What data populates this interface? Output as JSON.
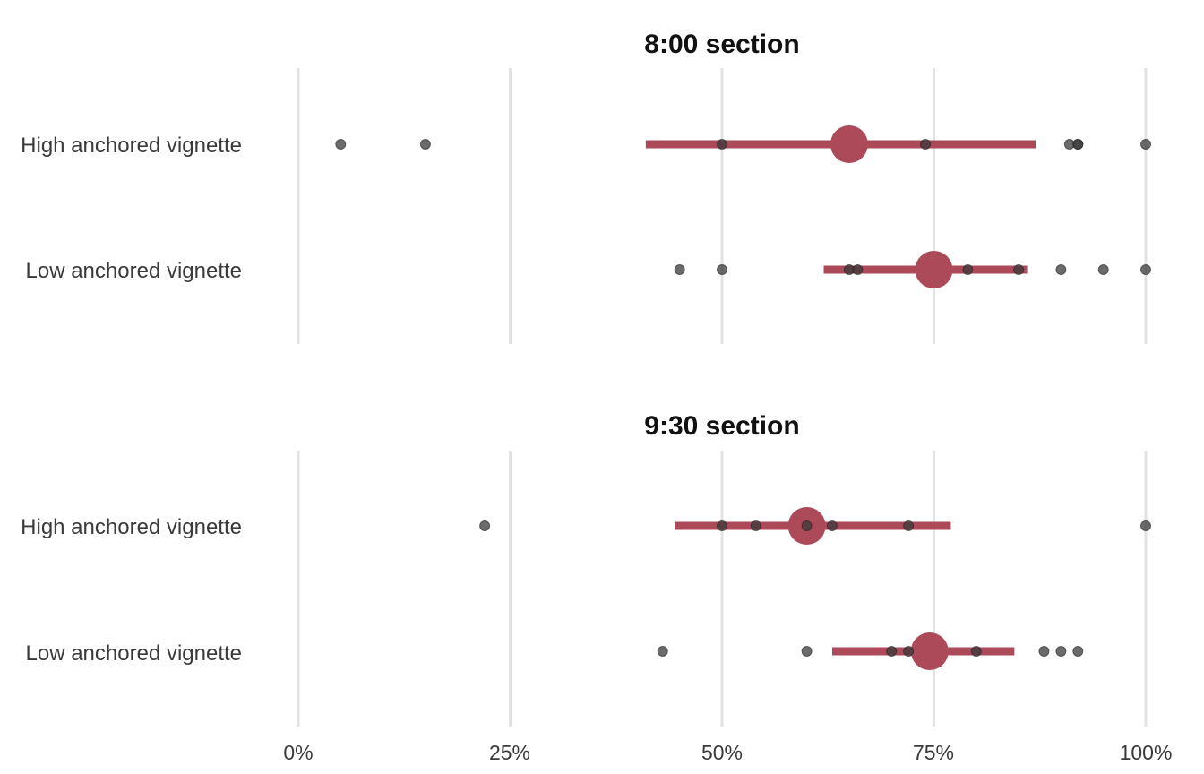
{
  "chart_data": {
    "type": "scatter",
    "xlim": [
      0,
      100
    ],
    "x_ticks": [
      0,
      25,
      50,
      75,
      100
    ],
    "x_tick_labels": [
      "0%",
      "25%",
      "50%",
      "75%",
      "100%"
    ],
    "grid": "vertical",
    "colors": {
      "interval": "#ad4a5a",
      "mean": "#ad4a5a",
      "points": "#3a3a3a"
    },
    "panels": [
      {
        "title": "8:00 section",
        "rows": [
          {
            "label": "High anchored vignette",
            "points": [
              5,
              15,
              50,
              74,
              91,
              92,
              92,
              100
            ],
            "mean": 65,
            "interval": [
              41,
              87
            ]
          },
          {
            "label": "Low anchored vignette",
            "points": [
              45,
              50,
              65,
              66,
              79,
              85,
              90,
              95,
              100
            ],
            "mean": 75,
            "interval": [
              62,
              86
            ]
          }
        ]
      },
      {
        "title": "9:30 section",
        "rows": [
          {
            "label": "High anchored vignette",
            "points": [
              22,
              50,
              54,
              60,
              63,
              72,
              100
            ],
            "mean": 60,
            "interval": [
              44.5,
              77
            ]
          },
          {
            "label": "Low anchored vignette",
            "points": [
              43,
              60,
              70,
              72,
              80,
              88,
              90,
              92
            ],
            "mean": 74.5,
            "interval": [
              63,
              84.5
            ]
          }
        ]
      }
    ]
  }
}
